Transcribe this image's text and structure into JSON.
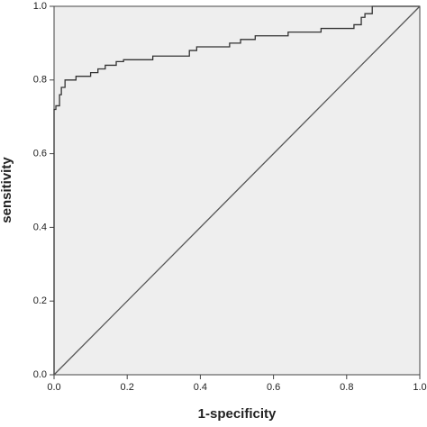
{
  "chart_data": {
    "type": "line",
    "xlabel": "1-specificity",
    "ylabel": "sensitivity",
    "xlim": [
      0,
      1
    ],
    "ylim": [
      0,
      1
    ],
    "xticks": [
      {
        "value": 0,
        "label": "0.0"
      },
      {
        "value": 0.2,
        "label": "0.2"
      },
      {
        "value": 0.4,
        "label": "0.4"
      },
      {
        "value": 0.6,
        "label": "0.6"
      },
      {
        "value": 0.8,
        "label": "0.8"
      },
      {
        "value": 1,
        "label": "1.0"
      }
    ],
    "yticks": [
      {
        "value": 0,
        "label": "0.0"
      },
      {
        "value": 0.2,
        "label": "0.2"
      },
      {
        "value": 0.4,
        "label": "0.4"
      },
      {
        "value": 0.6,
        "label": "0.6"
      },
      {
        "value": 0.8,
        "label": "0.8"
      },
      {
        "value": 1,
        "label": "1.0"
      }
    ],
    "background": "#eeeeee",
    "series": [
      {
        "color": "#333333",
        "x": [
          0,
          0,
          0.005,
          0.005,
          0.015,
          0.015,
          0.02,
          0.02,
          0.03,
          0.03,
          0.06,
          0.06,
          0.1,
          0.1,
          0.12,
          0.12,
          0.14,
          0.14,
          0.17,
          0.17,
          0.19,
          0.19,
          0.27,
          0.27,
          0.37,
          0.37,
          0.39,
          0.39,
          0.48,
          0.48,
          0.51,
          0.51,
          0.55,
          0.55,
          0.64,
          0.64,
          0.73,
          0.73,
          0.82,
          0.82,
          0.84,
          0.84,
          0.85,
          0.85,
          0.87,
          0.87,
          1
        ],
        "values": [
          0,
          0.72,
          0.72,
          0.73,
          0.73,
          0.76,
          0.76,
          0.78,
          0.78,
          0.8,
          0.8,
          0.81,
          0.81,
          0.82,
          0.82,
          0.83,
          0.83,
          0.84,
          0.84,
          0.85,
          0.85,
          0.855,
          0.855,
          0.865,
          0.865,
          0.88,
          0.88,
          0.89,
          0.89,
          0.9,
          0.9,
          0.91,
          0.91,
          0.92,
          0.92,
          0.93,
          0.93,
          0.94,
          0.94,
          0.95,
          0.95,
          0.97,
          0.97,
          0.98,
          0.98,
          1,
          1
        ]
      },
      {
        "color": "#555555",
        "x": [
          0,
          1
        ],
        "values": [
          0,
          1
        ]
      }
    ]
  }
}
